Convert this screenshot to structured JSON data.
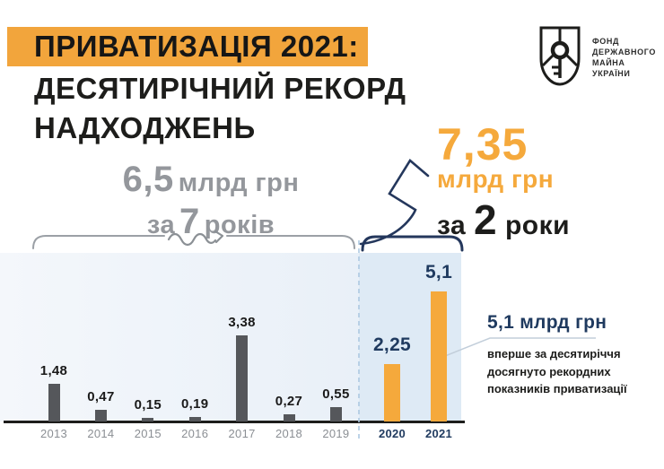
{
  "header": {
    "title_highlight": "ПРИВАТИЗАЦІЯ 2021:",
    "title_line2": "ДЕСЯТИРІЧНИЙ РЕКОРД",
    "title_line3": "НАДХОДЖЕНЬ"
  },
  "logo": {
    "org_lines": [
      "ФОНД",
      "ДЕРЖАВНОГО",
      "МАЙНА",
      "УКРАЇНИ"
    ]
  },
  "left_callout": {
    "amount": "6,5",
    "unit": "млрд грн",
    "period_prefix": "за",
    "period_number": "7",
    "period_suffix": "років"
  },
  "right_callout": {
    "amount": "7,35",
    "unit": "млрд грн",
    "period_prefix": "за",
    "period_number": "2",
    "period_suffix": "роки"
  },
  "annotation": {
    "title": "5,1 млрд грн",
    "lines": [
      "вперше за десятиріччя",
      "досягнуто рекордних",
      "показників приватизації"
    ]
  },
  "chart_data": {
    "type": "bar",
    "categories": [
      "2013",
      "2014",
      "2015",
      "2016",
      "2017",
      "2018",
      "2019",
      "2020",
      "2021"
    ],
    "values": [
      1.48,
      0.47,
      0.15,
      0.19,
      3.38,
      0.27,
      0.55,
      2.25,
      5.1
    ],
    "value_labels": [
      "1,48",
      "0,47",
      "0,15",
      "0,19",
      "3,38",
      "0,27",
      "0,55",
      "2,25",
      "5,1"
    ],
    "groups": [
      "past",
      "past",
      "past",
      "past",
      "past",
      "past",
      "past",
      "record",
      "record"
    ],
    "series_note_past": "6,5 млрд грн за 7 років (2013–2019)",
    "series_note_record": "7,35 млрд грн за 2 роки (2020–2021)",
    "unit": "млрд грн",
    "ylim": [
      0,
      5.5
    ],
    "grid": false,
    "legend": false
  },
  "colors": {
    "accent_orange": "#F5A93C",
    "highlight_band": "#F2A53C",
    "navy": "#1F3A5F",
    "bar_gray": "#55575B",
    "panel_past": "#EDF2F9",
    "panel_record": "#DEEAF5",
    "dashed_line": "#ADC9E2",
    "bracket_gray": "#9BA0A6"
  }
}
